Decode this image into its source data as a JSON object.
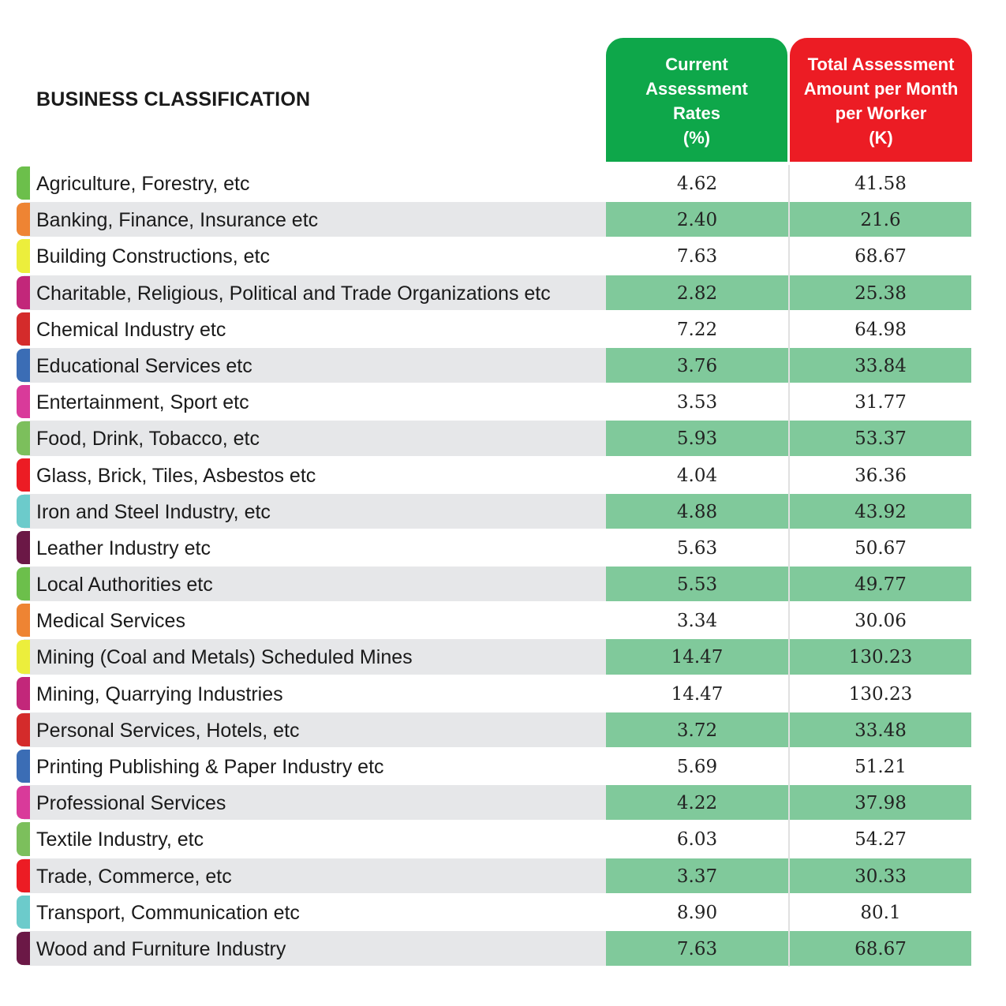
{
  "header": {
    "title": "BUSINESS CLASSIFICATION",
    "rate_col": [
      "Current",
      "Assessment",
      "Rates",
      "(%)"
    ],
    "amount_col": [
      "Total Assessment",
      "Amount per Month",
      "per Worker",
      "(K)"
    ]
  },
  "colors": {
    "rate_header": "#0ea74a",
    "amount_header": "#ec1c24",
    "alt_row_label": "#e6e7e9",
    "alt_row_value": "#80c99b"
  },
  "rows": [
    {
      "name": "Agriculture, Forestry, etc",
      "rate": "4.62",
      "amount": "41.58",
      "tab_color": "#6cbf4b"
    },
    {
      "name": "Banking, Finance, Insurance etc",
      "rate": "2.40",
      "amount": "21.6",
      "tab_color": "#ee8433"
    },
    {
      "name": "Building Constructions, etc",
      "rate": "7.63",
      "amount": "68.67",
      "tab_color": "#ecee3c"
    },
    {
      "name": "Charitable, Religious, Political and Trade Organizations etc",
      "rate": "2.82",
      "amount": "25.38",
      "tab_color": "#c2277a"
    },
    {
      "name": "Chemical Industry etc",
      "rate": "7.22",
      "amount": "64.98",
      "tab_color": "#d42b2b"
    },
    {
      "name": "Educational Services etc",
      "rate": "3.76",
      "amount": "33.84",
      "tab_color": "#3b6db5"
    },
    {
      "name": "Entertainment, Sport etc",
      "rate": "3.53",
      "amount": "31.77",
      "tab_color": "#d93a9a"
    },
    {
      "name": "Food, Drink, Tobacco, etc",
      "rate": "5.93",
      "amount": "53.37",
      "tab_color": "#7cbf5c"
    },
    {
      "name": "Glass, Brick, Tiles, Asbestos etc",
      "rate": "4.04",
      "amount": "36.36",
      "tab_color": "#ec1c24"
    },
    {
      "name": "Iron and Steel Industry, etc",
      "rate": "4.88",
      "amount": "43.92",
      "tab_color": "#6ccbcb"
    },
    {
      "name": "Leather Industry etc",
      "rate": "5.63",
      "amount": "50.67",
      "tab_color": "#6b1846"
    },
    {
      "name": "Local Authorities etc",
      "rate": "5.53",
      "amount": "49.77",
      "tab_color": "#6cbf4b"
    },
    {
      "name": "Medical Services",
      "rate": "3.34",
      "amount": "30.06",
      "tab_color": "#ee8433"
    },
    {
      "name": "Mining (Coal and Metals) Scheduled Mines",
      "rate": "14.47",
      "amount": "130.23",
      "tab_color": "#ecee3c"
    },
    {
      "name": "Mining, Quarrying Industries",
      "rate": "14.47",
      "amount": "130.23",
      "tab_color": "#c2277a"
    },
    {
      "name": "Personal Services, Hotels, etc",
      "rate": "3.72",
      "amount": "33.48",
      "tab_color": "#d42b2b"
    },
    {
      "name": "Printing Publishing & Paper Industry etc",
      "rate": "5.69",
      "amount": "51.21",
      "tab_color": "#3b6db5"
    },
    {
      "name": "Professional Services",
      "rate": "4.22",
      "amount": "37.98",
      "tab_color": "#d93a9a"
    },
    {
      "name": "Textile Industry, etc",
      "rate": "6.03",
      "amount": "54.27",
      "tab_color": "#7cbf5c"
    },
    {
      "name": "Trade, Commerce, etc",
      "rate": "3.37",
      "amount": "30.33",
      "tab_color": "#ec1c24"
    },
    {
      "name": "Transport, Communication etc",
      "rate": "8.90",
      "amount": "80.1",
      "tab_color": "#6ccbcb"
    },
    {
      "name": "Wood and Furniture Industry",
      "rate": "7.63",
      "amount": "68.67",
      "tab_color": "#6b1846"
    }
  ]
}
